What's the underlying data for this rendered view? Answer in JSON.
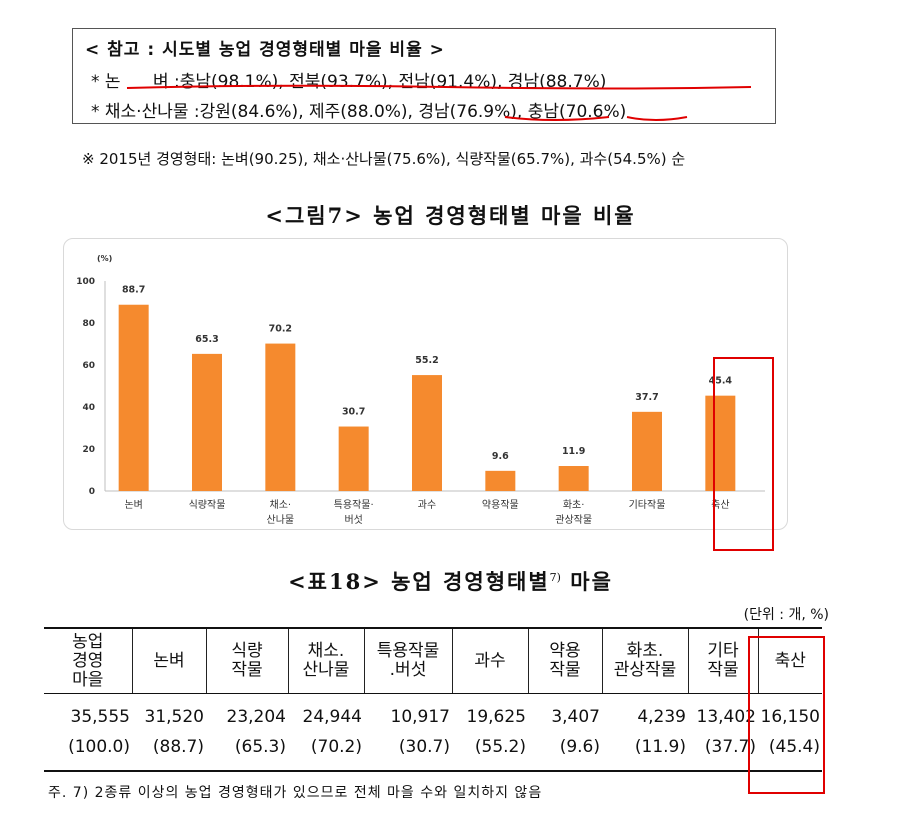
{
  "reference": {
    "title": "< 참고 : 시도별 농업 경영형태별 마을 비율 >",
    "line1": "* 논      벼 :충남(98.1%), 전북(93.7%), 전남(91.4%), 경남(88.7%)",
    "line2": "* 채소·산나물 :강원(84.6%), 제주(88.0%), 경남(76.9%), 충남(70.6%)"
  },
  "note_2015": "※ 2015년 경영형태: 논벼(90.25), 채소·산나물(75.6%), 식량작물(65.7%), 과수(54.5%) 순",
  "figure_title": "<그림7> 농업 경영형태별 마을 비율",
  "chart_data": {
    "type": "bar",
    "ylabel": "(%)",
    "ylim": [
      0,
      100
    ],
    "yticks": [
      "0",
      "20",
      "40",
      "60",
      "80",
      "100"
    ],
    "categories": [
      [
        "논벼"
      ],
      [
        "식량작물"
      ],
      [
        "채소·",
        "산나물"
      ],
      [
        "특용작물·",
        "버섯"
      ],
      [
        "과수"
      ],
      [
        "약용작물"
      ],
      [
        "화초·",
        "관상작물"
      ],
      [
        "기타작물"
      ],
      [
        "축산"
      ]
    ],
    "values": [
      88.7,
      65.3,
      70.2,
      30.7,
      55.2,
      9.6,
      11.9,
      37.7,
      45.4
    ],
    "value_labels": [
      "88.7",
      "65.3",
      "70.2",
      "30.7",
      "55.2",
      "9.6",
      "11.9",
      "37.7",
      "45.4"
    ],
    "bar_color": "#F58A2E",
    "highlight_category": "축산",
    "highlight_color": "#E00000",
    "grid": false
  },
  "table_title": "<표18> 농업 경영형태별",
  "table_title_sup": "7)",
  "table_title_tail": "마을",
  "unit": "(단위 : 개, %)",
  "table": {
    "headers": [
      [
        "농업",
        "경영",
        "마을"
      ],
      [
        "논벼"
      ],
      [
        "식량",
        "작물"
      ],
      [
        "채소.",
        "산나물"
      ],
      [
        "특용작물",
        ".버섯"
      ],
      [
        "과수"
      ],
      [
        "약용",
        "작물"
      ],
      [
        "화초.",
        "관상작물"
      ],
      [
        "기타",
        "작물"
      ],
      [
        "축산"
      ]
    ],
    "counts": [
      "35,555",
      "31,520",
      "23,204",
      "24,944",
      "10,917",
      "19,625",
      "3,407",
      "4,239",
      "13,402",
      "16,150"
    ],
    "ratios": [
      "(100.0)",
      "(88.7)",
      "(65.3)",
      "(70.2)",
      "(30.7)",
      "(55.2)",
      "(9.6)",
      "(11.9)",
      "(37.7)",
      "(45.4)"
    ]
  },
  "footnote": "주. 7) 2종류 이상의 농업 경영형태가 있으므로 전체 마을 수와 일치하지 않음"
}
